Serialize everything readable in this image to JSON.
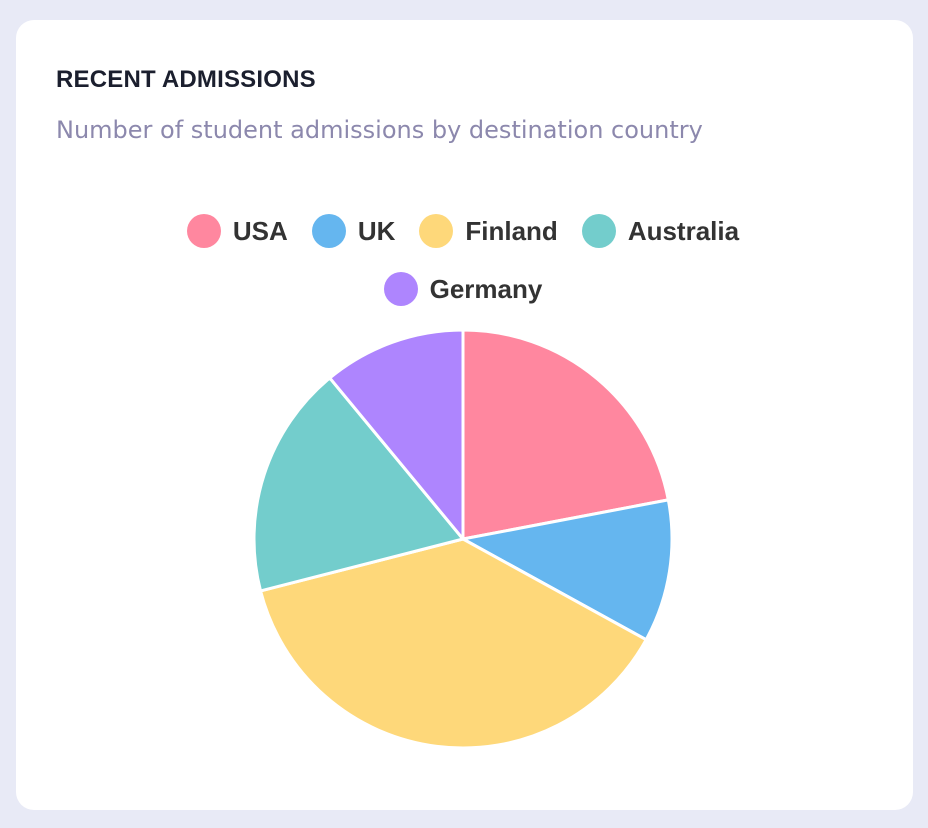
{
  "card": {
    "title": "RECENT ADMISSIONS",
    "subtitle": "Number of student admissions by destination country"
  },
  "chart_data": {
    "type": "pie",
    "title": "RECENT ADMISSIONS",
    "subtitle": "Number of student admissions by destination country",
    "legend_position": "top",
    "categories": [
      "USA",
      "UK",
      "Finland",
      "Australia",
      "Germany"
    ],
    "values": [
      22,
      11,
      38,
      18,
      11
    ],
    "colors": [
      "#ff879f",
      "#65b6ef",
      "#fed87a",
      "#73cdcc",
      "#ae85fe"
    ]
  }
}
